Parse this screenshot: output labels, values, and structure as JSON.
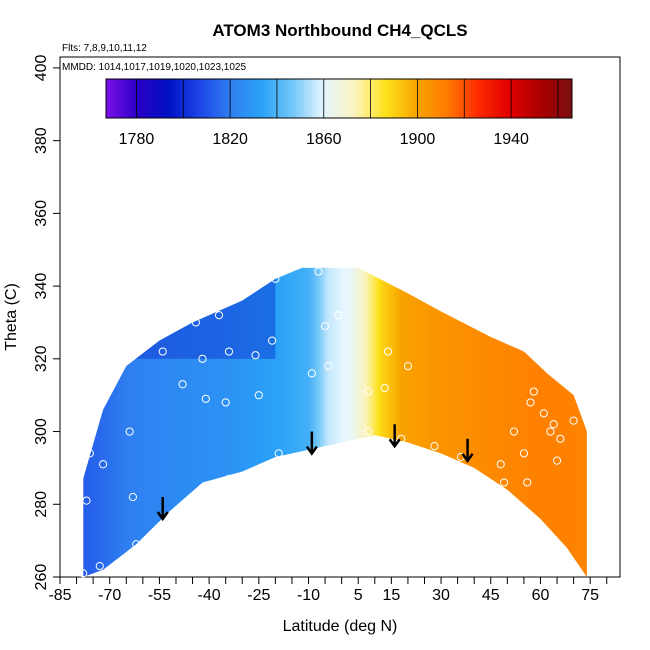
{
  "chart_data": {
    "type": "heatmap",
    "title": "ATOM3 Northbound CH4_QCLS",
    "annotations": [
      "Flts: 7,8,9,10,11,12",
      "MMDD: 1014,1017,1019,1020,1023,1025"
    ],
    "xlabel": "Latitude (deg N)",
    "ylabel": "Theta (C)",
    "xlim": [
      -85,
      84
    ],
    "ylim": [
      260,
      403
    ],
    "xticks": [
      -85,
      -70,
      -55,
      -40,
      -25,
      -10,
      5,
      15,
      30,
      45,
      60,
      75
    ],
    "xtick_labels": [
      "-85",
      "-70",
      "-55",
      "-40",
      "-25",
      "-10",
      "5",
      "15",
      "30",
      "45",
      "60",
      "75"
    ],
    "yticks": [
      260,
      280,
      300,
      320,
      340,
      360,
      380,
      400
    ],
    "ytick_labels": [
      "260",
      "280",
      "300",
      "320",
      "340",
      "360",
      "380",
      "400"
    ],
    "colorbar": {
      "min": 1767,
      "max": 1966,
      "ticks": [
        1780,
        1820,
        1860,
        1900,
        1940
      ],
      "tick_labels": [
        "1780",
        "1820",
        "1860",
        "1900",
        "1940"
      ],
      "palette": [
        "#7d10e8",
        "#2a00c6",
        "#0010c4",
        "#1c44e6",
        "#2f7ff0",
        "#2aa2f8",
        "#72c6f8",
        "#e6f6ff",
        "#fbf4c0",
        "#fde21a",
        "#f8a400",
        "#ff7a00",
        "#ff2a00",
        "#e00000",
        "#aa0000",
        "#7a1010"
      ]
    },
    "field_profile": [
      {
        "lat": -78,
        "value": 1812
      },
      {
        "lat": -65,
        "value": 1820
      },
      {
        "lat": -50,
        "value": 1824
      },
      {
        "lat": -35,
        "value": 1827
      },
      {
        "lat": -20,
        "value": 1833
      },
      {
        "lat": -10,
        "value": 1838
      },
      {
        "lat": -4,
        "value": 1856
      },
      {
        "lat": 3,
        "value": 1862
      },
      {
        "lat": 8,
        "value": 1876
      },
      {
        "lat": 12,
        "value": 1889
      },
      {
        "lat": 18,
        "value": 1900
      },
      {
        "lat": 30,
        "value": 1905
      },
      {
        "lat": 45,
        "value": 1908
      },
      {
        "lat": 60,
        "value": 1911
      },
      {
        "lat": 74,
        "value": 1910
      }
    ],
    "sampled_region_top": [
      {
        "lat": -78,
        "theta": 287
      },
      {
        "lat": -72,
        "theta": 306
      },
      {
        "lat": -65,
        "theta": 318
      },
      {
        "lat": -55,
        "theta": 325
      },
      {
        "lat": -45,
        "theta": 330
      },
      {
        "lat": -30,
        "theta": 336
      },
      {
        "lat": -20,
        "theta": 342
      },
      {
        "lat": -12,
        "theta": 345
      },
      {
        "lat": 5,
        "theta": 345
      },
      {
        "lat": 20,
        "theta": 338
      },
      {
        "lat": 30,
        "theta": 333
      },
      {
        "lat": 45,
        "theta": 326
      },
      {
        "lat": 55,
        "theta": 322
      },
      {
        "lat": 62,
        "theta": 316
      },
      {
        "lat": 70,
        "theta": 310
      },
      {
        "lat": 74,
        "theta": 300
      }
    ],
    "sampled_region_bottom": [
      {
        "lat": -78,
        "theta": 260
      },
      {
        "lat": -72,
        "theta": 262
      },
      {
        "lat": -62,
        "theta": 269
      },
      {
        "lat": -52,
        "theta": 278
      },
      {
        "lat": -42,
        "theta": 286
      },
      {
        "lat": -30,
        "theta": 289
      },
      {
        "lat": -20,
        "theta": 293
      },
      {
        "lat": -10,
        "theta": 295
      },
      {
        "lat": 0,
        "theta": 297
      },
      {
        "lat": 10,
        "theta": 299
      },
      {
        "lat": 20,
        "theta": 297
      },
      {
        "lat": 30,
        "theta": 294
      },
      {
        "lat": 40,
        "theta": 290
      },
      {
        "lat": 50,
        "theta": 284
      },
      {
        "lat": 60,
        "theta": 276
      },
      {
        "lat": 68,
        "theta": 268
      },
      {
        "lat": 74,
        "theta": 260
      }
    ],
    "samples": [
      {
        "lat": -78,
        "theta": 261
      },
      {
        "lat": -77,
        "theta": 281
      },
      {
        "lat": -76,
        "theta": 294
      },
      {
        "lat": -74,
        "theta": 307
      },
      {
        "lat": -73,
        "theta": 263
      },
      {
        "lat": -72,
        "theta": 291
      },
      {
        "lat": -65,
        "theta": 325
      },
      {
        "lat": -64,
        "theta": 300
      },
      {
        "lat": -63,
        "theta": 282
      },
      {
        "lat": -62,
        "theta": 269
      },
      {
        "lat": -54,
        "theta": 322
      },
      {
        "lat": -48,
        "theta": 313
      },
      {
        "lat": -44,
        "theta": 330
      },
      {
        "lat": -42,
        "theta": 320
      },
      {
        "lat": -41,
        "theta": 309
      },
      {
        "lat": -37,
        "theta": 332
      },
      {
        "lat": -35,
        "theta": 308
      },
      {
        "lat": -34,
        "theta": 322
      },
      {
        "lat": -34,
        "theta": 287
      },
      {
        "lat": -26,
        "theta": 321
      },
      {
        "lat": -25,
        "theta": 310
      },
      {
        "lat": -21,
        "theta": 325
      },
      {
        "lat": -20,
        "theta": 342
      },
      {
        "lat": -19,
        "theta": 294
      },
      {
        "lat": -9,
        "theta": 316
      },
      {
        "lat": -7,
        "theta": 344
      },
      {
        "lat": -5,
        "theta": 329
      },
      {
        "lat": -4,
        "theta": 318
      },
      {
        "lat": -1,
        "theta": 332
      },
      {
        "lat": 8,
        "theta": 311
      },
      {
        "lat": 8,
        "theta": 300
      },
      {
        "lat": 13,
        "theta": 312
      },
      {
        "lat": 14,
        "theta": 322
      },
      {
        "lat": 18,
        "theta": 298
      },
      {
        "lat": 20,
        "theta": 318
      },
      {
        "lat": 28,
        "theta": 296
      },
      {
        "lat": 36,
        "theta": 293
      },
      {
        "lat": 48,
        "theta": 291
      },
      {
        "lat": 49,
        "theta": 286
      },
      {
        "lat": 52,
        "theta": 300
      },
      {
        "lat": 55,
        "theta": 294
      },
      {
        "lat": 56,
        "theta": 286
      },
      {
        "lat": 59,
        "theta": 321
      },
      {
        "lat": 58,
        "theta": 311
      },
      {
        "lat": 57,
        "theta": 308
      },
      {
        "lat": 61,
        "theta": 305
      },
      {
        "lat": 63,
        "theta": 300
      },
      {
        "lat": 64,
        "theta": 302
      },
      {
        "lat": 66,
        "theta": 298
      },
      {
        "lat": 65,
        "theta": 292
      },
      {
        "lat": 70,
        "theta": 303
      }
    ],
    "arrows": [
      {
        "lat": -54,
        "theta": 282
      },
      {
        "lat": -9,
        "theta": 300
      },
      {
        "lat": 16,
        "theta": 302
      },
      {
        "lat": 38,
        "theta": 298
      }
    ]
  }
}
